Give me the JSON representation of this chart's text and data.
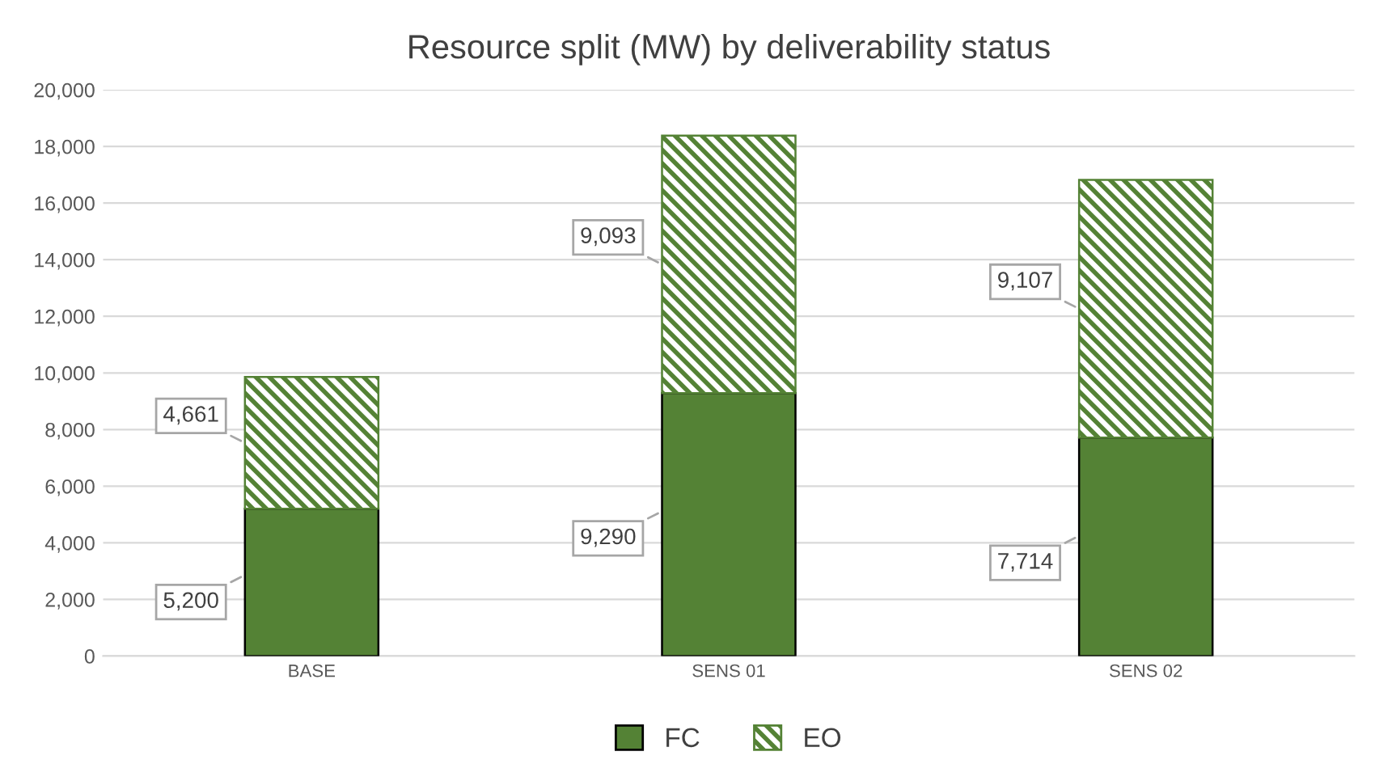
{
  "chart_data": {
    "type": "bar",
    "title": "Resource split (MW) by deliverability status",
    "categories": [
      "BASE",
      "SENS 01",
      "SENS 02"
    ],
    "stacked": true,
    "series": [
      {
        "name": "FC",
        "color": "#548235",
        "values": [
          5200,
          9290,
          7714
        ],
        "value_labels": [
          "5,200",
          "9,290",
          "7,714"
        ]
      },
      {
        "name": "EO",
        "color": "#548235",
        "values": [
          4661,
          9093,
          9107
        ],
        "value_labels": [
          "4,661",
          "9,093",
          "9,107"
        ]
      }
    ],
    "ylim": [
      0,
      20000
    ],
    "yticks": [
      0,
      {
        "value": 2000,
        "label": "2,000"
      },
      {
        "value": 4000,
        "label": "4,000"
      },
      {
        "value": 6000,
        "label": "6,000"
      },
      {
        "value": 8000,
        "label": "8,000"
      },
      {
        "value": 10000,
        "label": "10,000"
      },
      {
        "value": 12000,
        "label": "12,000"
      },
      {
        "value": 14000,
        "label": "14,000"
      },
      {
        "value": 16000,
        "label": "16,000"
      },
      {
        "value": 18000,
        "label": "18,000"
      },
      {
        "value": 20000,
        "label": "20,000"
      }
    ],
    "grid": "y",
    "legend": "bottom"
  }
}
